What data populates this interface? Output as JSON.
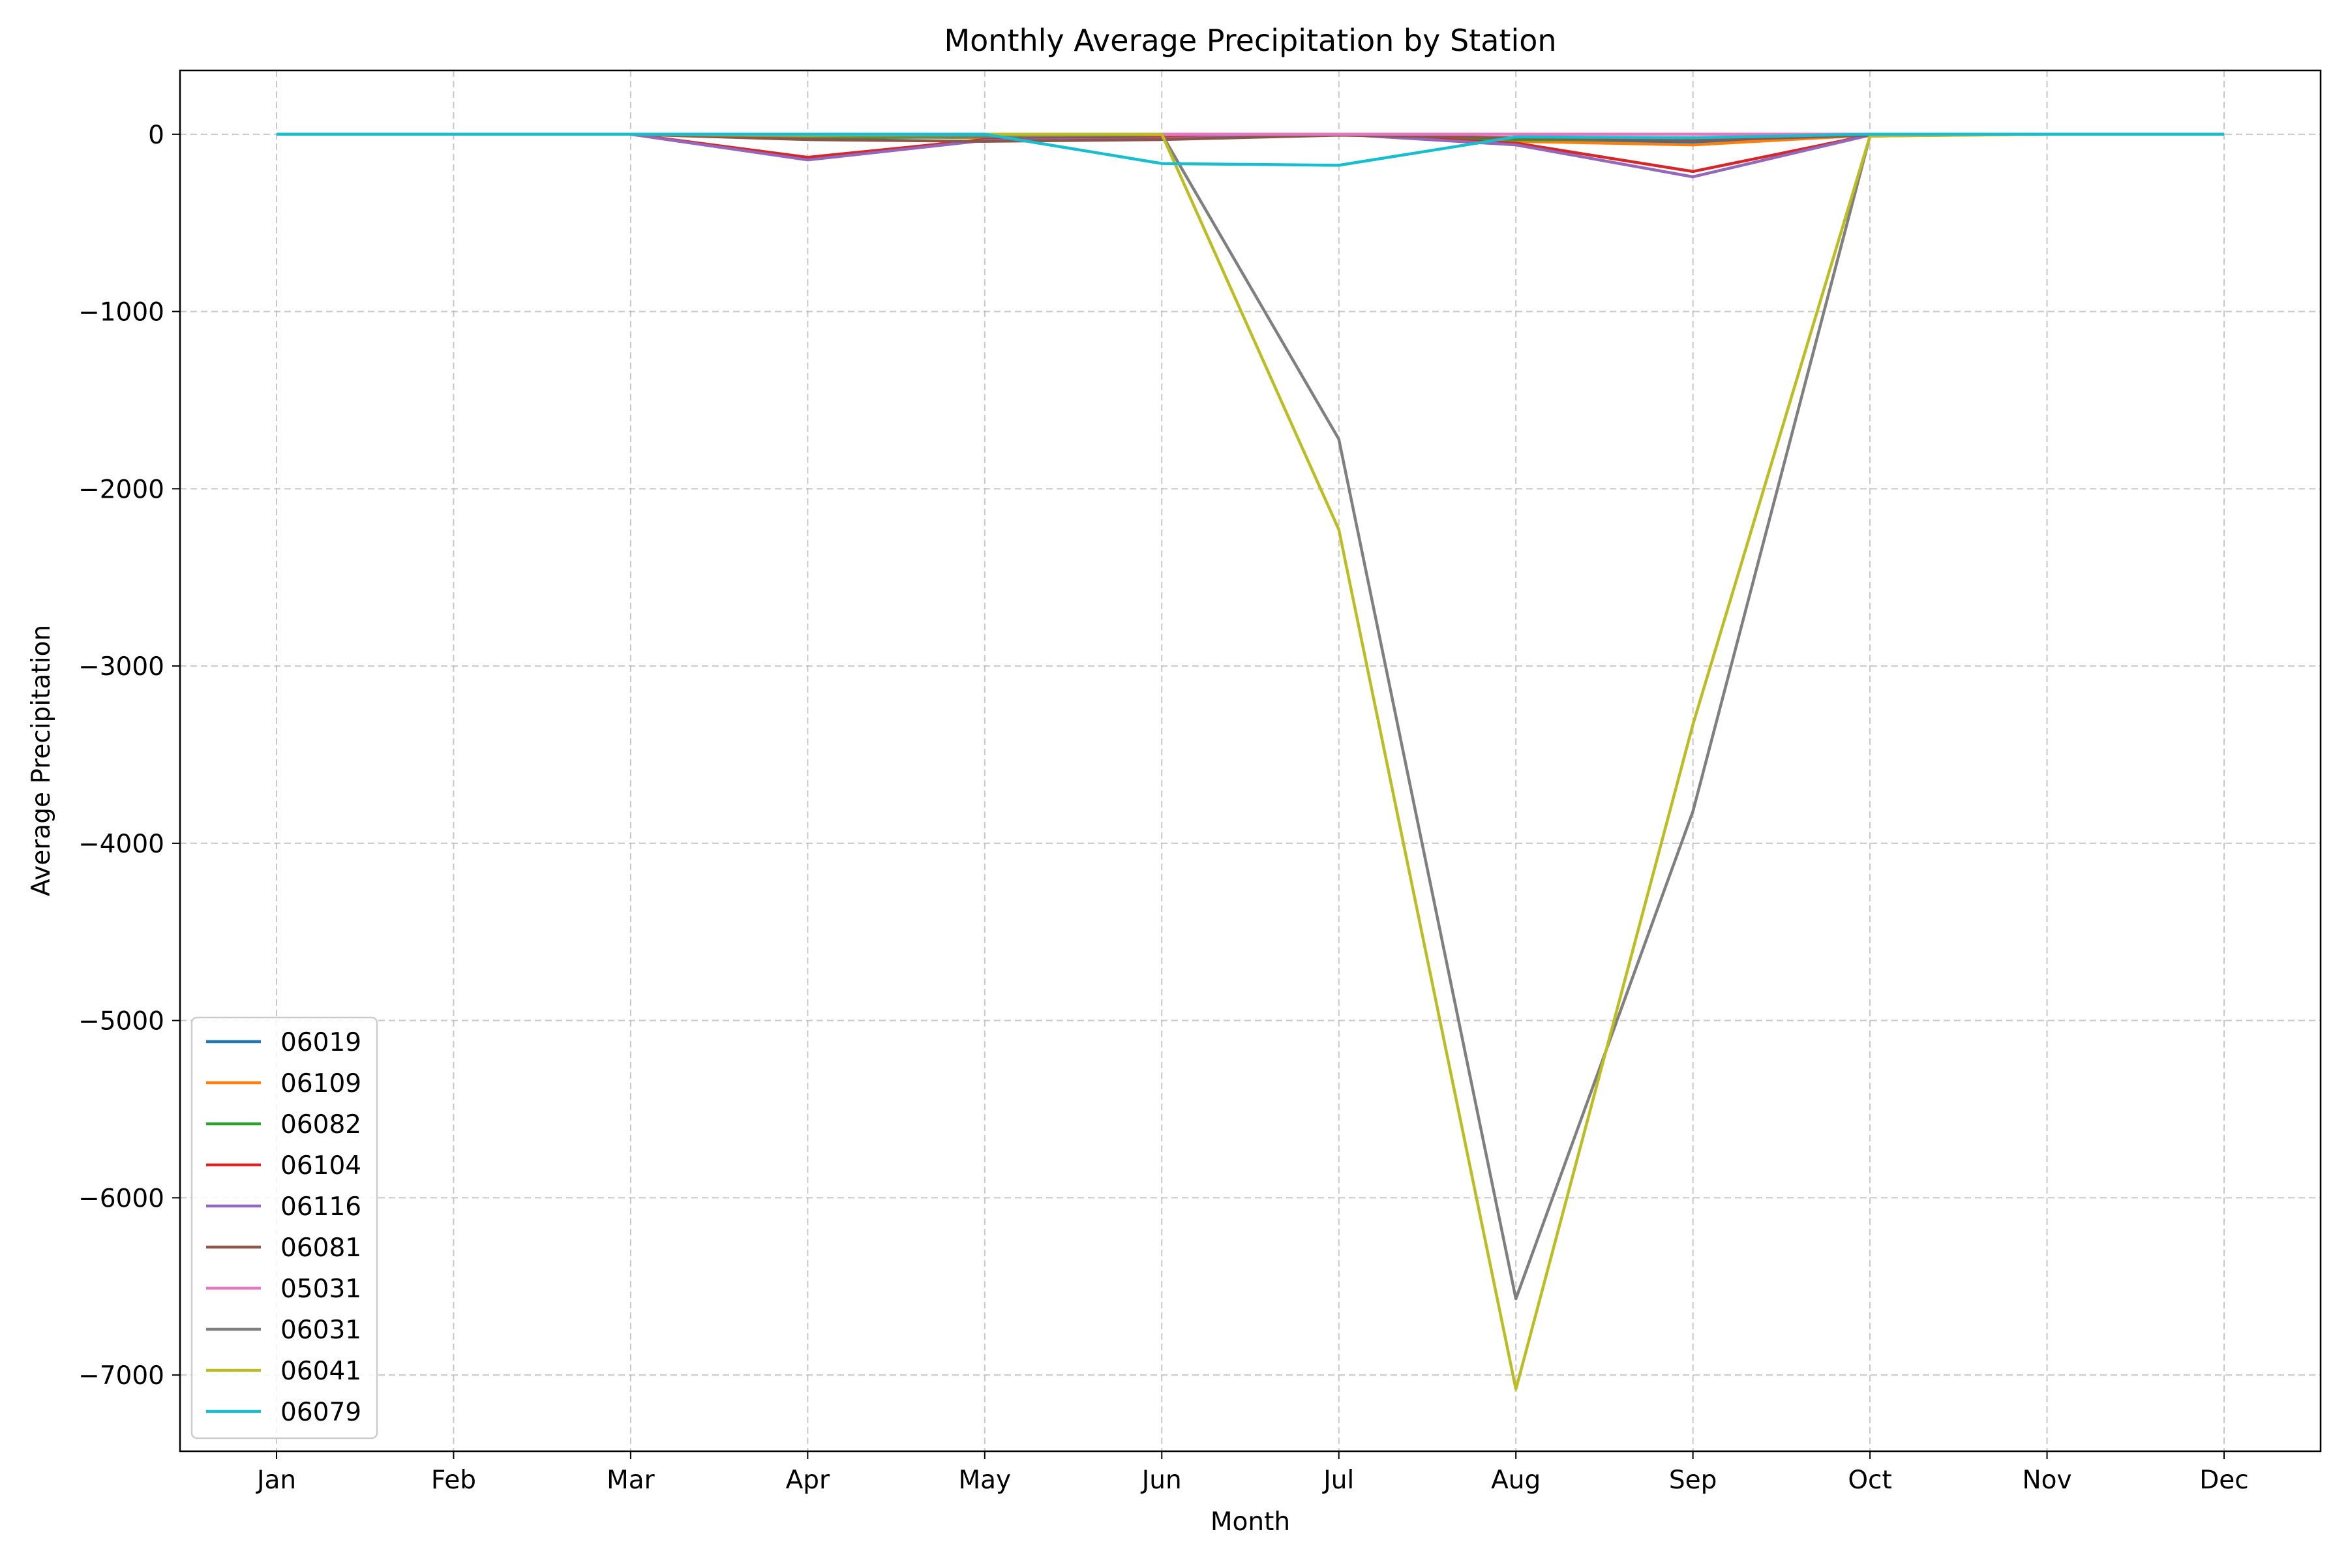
{
  "chart_data": {
    "type": "line",
    "title": "Monthly Average Precipitation by Station",
    "xlabel": "Month",
    "ylabel": "Average Precipitation",
    "categories": [
      "Jan",
      "Feb",
      "Mar",
      "Apr",
      "May",
      "Jun",
      "Jul",
      "Aug",
      "Sep",
      "Oct",
      "Nov",
      "Dec"
    ],
    "ylim": [
      -7430,
      360
    ],
    "yticks": [
      0,
      -1000,
      -2000,
      -3000,
      -4000,
      -5000,
      -6000,
      -7000
    ],
    "ytick_labels": [
      "0",
      "−1000",
      "−2000",
      "−3000",
      "−4000",
      "−5000",
      "−6000",
      "−7000"
    ],
    "grid": true,
    "legend_position": "lower-left",
    "series": [
      {
        "name": "06019",
        "color": "#1f77b4",
        "values": [
          0,
          0,
          0,
          -5,
          -10,
          -5,
          0,
          -30,
          -45,
          -5,
          0,
          0
        ]
      },
      {
        "name": "06109",
        "color": "#ff7f0e",
        "values": [
          0,
          0,
          0,
          -10,
          -20,
          -10,
          0,
          -40,
          -60,
          -5,
          0,
          0
        ]
      },
      {
        "name": "06082",
        "color": "#2ca02c",
        "values": [
          0,
          0,
          0,
          -20,
          -15,
          -20,
          0,
          -30,
          -30,
          -5,
          0,
          0
        ]
      },
      {
        "name": "06104",
        "color": "#d62728",
        "values": [
          0,
          0,
          0,
          -130,
          -30,
          -20,
          0,
          -50,
          -210,
          -5,
          0,
          0
        ]
      },
      {
        "name": "06116",
        "color": "#9467bd",
        "values": [
          0,
          0,
          0,
          -145,
          -35,
          -25,
          0,
          -60,
          -240,
          -5,
          0,
          0
        ]
      },
      {
        "name": "06081",
        "color": "#8c564b",
        "values": [
          0,
          0,
          0,
          -30,
          -40,
          -30,
          -5,
          -20,
          -35,
          -5,
          0,
          0
        ]
      },
      {
        "name": "05031",
        "color": "#e377c2",
        "values": [
          0,
          0,
          0,
          0,
          0,
          0,
          0,
          0,
          0,
          0,
          0,
          0
        ]
      },
      {
        "name": "06031",
        "color": "#7f7f7f",
        "values": [
          0,
          0,
          0,
          -10,
          -10,
          0,
          -1720,
          -6570,
          -3820,
          -10,
          0,
          0
        ]
      },
      {
        "name": "06041",
        "color": "#bcbd22",
        "values": [
          0,
          0,
          0,
          -5,
          0,
          0,
          -2230,
          -7080,
          -3330,
          -10,
          0,
          0
        ]
      },
      {
        "name": "06079",
        "color": "#17becf",
        "values": [
          0,
          0,
          0,
          0,
          0,
          -165,
          -175,
          -15,
          -20,
          0,
          0,
          0
        ]
      }
    ]
  }
}
